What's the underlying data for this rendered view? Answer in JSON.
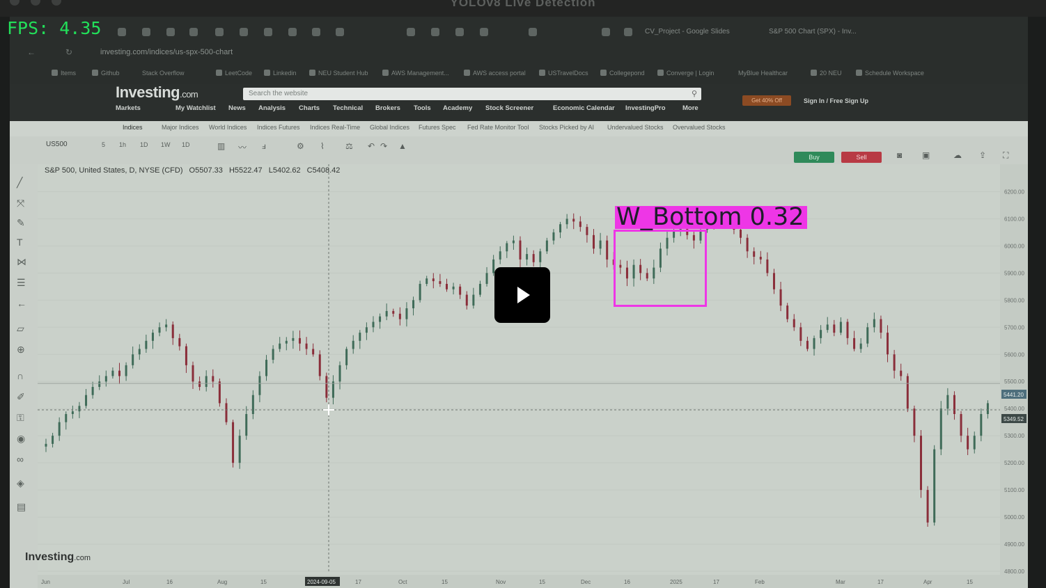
{
  "window": {
    "title": "YOLOv8 Live Detection",
    "fps_label": "FPS: 4.35"
  },
  "browser": {
    "tabs": [
      {
        "label": "CV_Project - Google Slides"
      },
      {
        "label": "S&P 500 Chart (SPX) - Inv..."
      }
    ],
    "url": "investing.com/indices/us-spx-500-chart",
    "bookmarks": [
      "Items",
      "Github",
      "Stack Overflow",
      "LeetCode",
      "Linkedin",
      "NEU Student Hub",
      "AWS Management...",
      "AWS access portal",
      "USTravelDocs",
      "Collegepond",
      "Converge | Login",
      "MyBlue Healthcar",
      "20 NEU",
      "Schedule Workspace"
    ]
  },
  "site": {
    "logo_main": "Investing",
    "logo_suffix": ".com",
    "search_placeholder": "Search the website",
    "promo": "Get 40% Off",
    "signin": "Sign In",
    "signup": "Free Sign Up",
    "nav": [
      "Markets",
      "My Watchlist",
      "News",
      "Analysis",
      "Charts",
      "Technical",
      "Brokers",
      "Tools",
      "Academy",
      "Stock Screener",
      "Economic Calendar",
      "InvestingPro",
      "More"
    ],
    "subnav": [
      "Indices",
      "Major Indices",
      "World Indices",
      "Indices Futures",
      "Indices Real-Time",
      "Global Indices",
      "Futures Spec",
      "Fed Rate Monitor Tool",
      "Stocks Picked by AI",
      "Undervalued Stocks",
      "Overvalued Stocks"
    ]
  },
  "toolbar": {
    "symbol": "US500",
    "intervals": [
      "5",
      "1h",
      "1D",
      "1W",
      "1D"
    ],
    "buy": "Buy",
    "sell": "Sell"
  },
  "chart_legend": {
    "name": "S&P 500, United States, D, NYSE (CFD)",
    "open": "O5507.33",
    "high": "H5522.47",
    "low": "L5402.62",
    "close": "C5408.42"
  },
  "chart_watermark": {
    "main": "Investing",
    "suffix": ".com"
  },
  "chart_data": {
    "type": "candlestick",
    "x_ticks": [
      "Jun",
      "Jul",
      "16",
      "Aug",
      "15",
      "2024-09-05",
      "17",
      "Oct",
      "15",
      "Nov",
      "15",
      "Dec",
      "16",
      "2025",
      "17",
      "Feb",
      "Mar",
      "17",
      "Apr",
      "15"
    ],
    "y_ticks": [
      "6200.00",
      "6100.00",
      "6000.00",
      "5900.00",
      "5800.00",
      "5700.00",
      "5600.00",
      "5500.00",
      "5400.00",
      "5300.00",
      "5200.00",
      "5100.00",
      "5000.00",
      "4900.00",
      "4800.00"
    ],
    "price_tags": [
      "5441.20",
      "5349.52"
    ],
    "ylim": [
      4800,
      6250
    ],
    "close_trajectory": [
      5270,
      5300,
      5350,
      5380,
      5390,
      5410,
      5450,
      5480,
      5500,
      5520,
      5540,
      5520,
      5560,
      5600,
      5620,
      5650,
      5680,
      5700,
      5710,
      5660,
      5630,
      5560,
      5500,
      5480,
      5520,
      5500,
      5420,
      5350,
      5200,
      5300,
      5380,
      5450,
      5520,
      5580,
      5620,
      5640,
      5650,
      5660,
      5640,
      5620,
      5600,
      5520,
      5440,
      5500,
      5560,
      5620,
      5650,
      5680,
      5700,
      5720,
      5740,
      5760,
      5750,
      5730,
      5770,
      5800,
      5860,
      5880,
      5870,
      5860,
      5840,
      5850,
      5820,
      5780,
      5820,
      5860,
      5900,
      5950,
      5980,
      6010,
      6020,
      5950,
      5970,
      5940,
      5980,
      6020,
      6050,
      6080,
      6100,
      6090,
      6070,
      6040,
      5990,
      6020,
      5950,
      5930,
      5920,
      5880,
      5930,
      5900,
      5880,
      5920,
      5990,
      6030,
      6060,
      6080,
      6040,
      6020,
      6060,
      6100,
      6080,
      6110,
      6100,
      6060,
      6030,
      5980,
      5960,
      5950,
      5900,
      5840,
      5780,
      5730,
      5700,
      5650,
      5620,
      5660,
      5690,
      5710,
      5680,
      5720,
      5660,
      5620,
      5640,
      5700,
      5730,
      5680,
      5600,
      5540,
      5520,
      5400,
      5300,
      5100,
      4980,
      5250,
      5400,
      5450,
      5380,
      5300,
      5250,
      5300,
      5380,
      5420
    ]
  },
  "detection": {
    "label": "W_Bottom",
    "confidence": "0.32",
    "text": "W_Bottom  0.32",
    "color": "#ee36e6"
  }
}
